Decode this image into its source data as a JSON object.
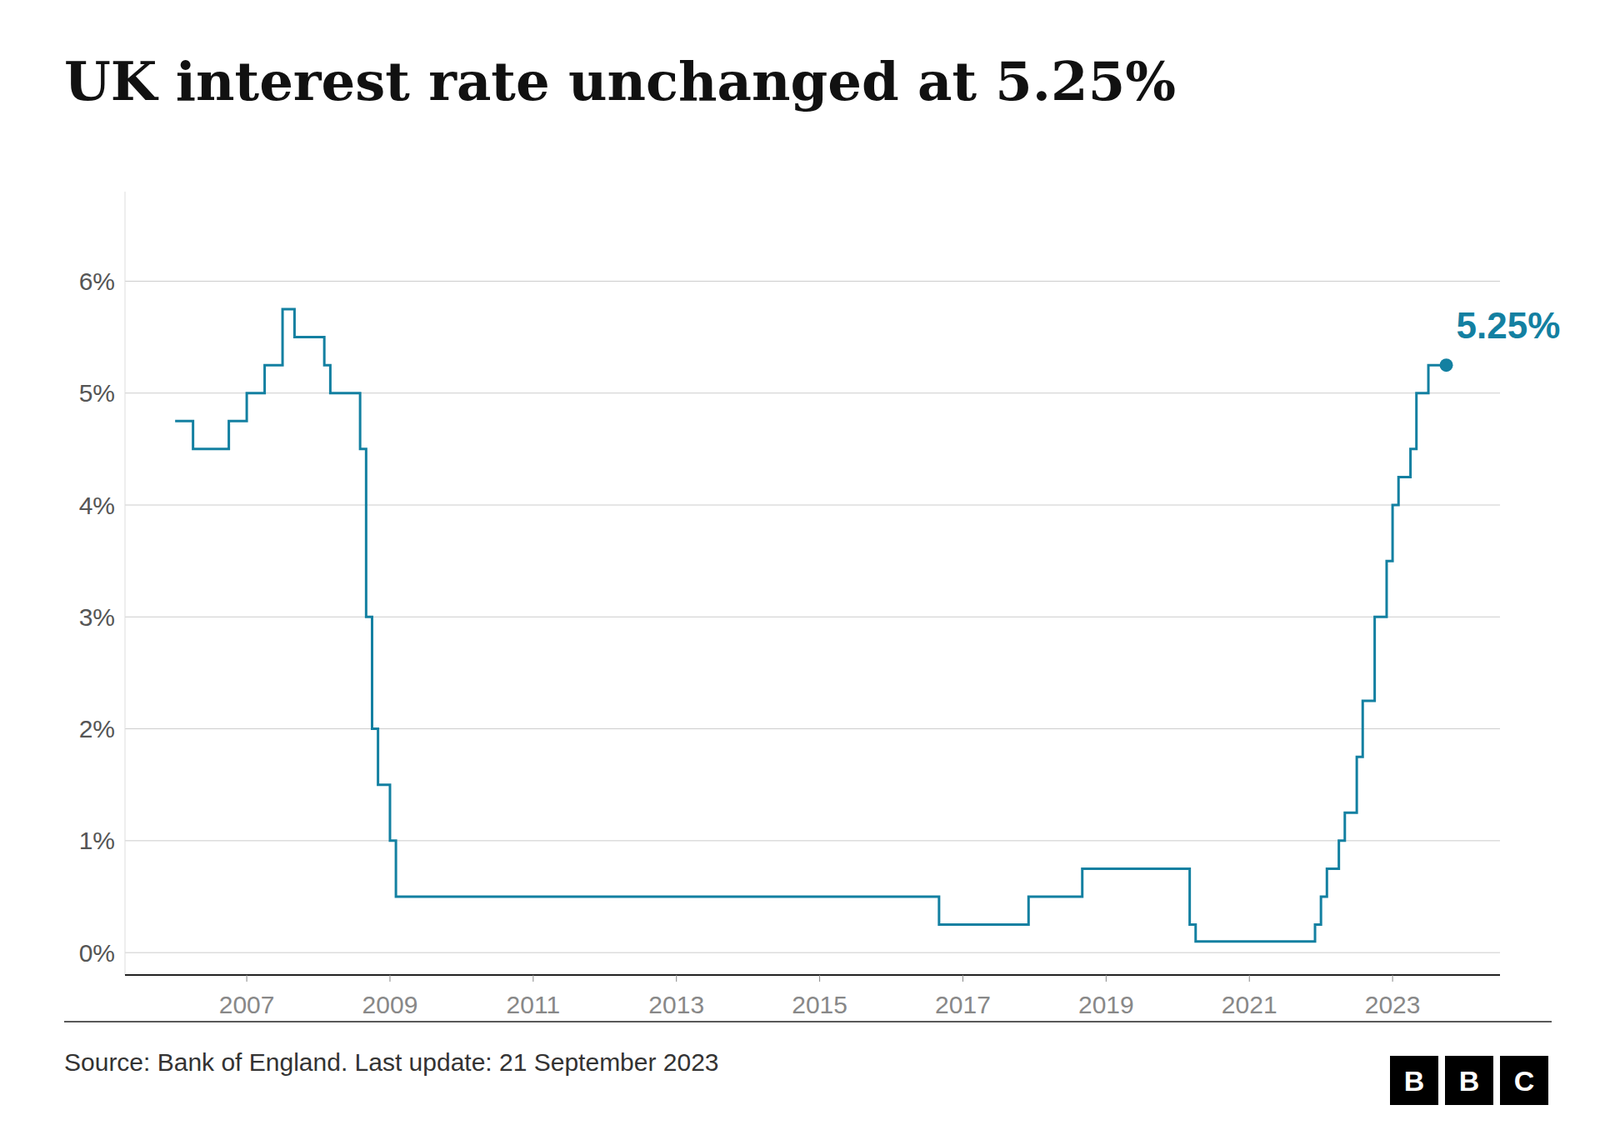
{
  "chart_data": {
    "type": "line",
    "line_style": "step",
    "title": "UK interest rate unchanged at 5.25%",
    "annotation": "5.25%",
    "source": "Source: Bank of England. Last update: 21 September 2023",
    "logo": "BBC",
    "color": "#1380A1",
    "grid": true,
    "x": [
      2006.0,
      2006.25,
      2006.583,
      2006.75,
      2007.0,
      2007.25,
      2007.5,
      2007.583,
      2007.667,
      2007.833,
      2007.917,
      2008.0,
      2008.083,
      2008.167,
      2008.333,
      2008.583,
      2008.667,
      2008.75,
      2008.833,
      2009.0,
      2009.083,
      2016.583,
      2016.667,
      2017.833,
      2017.917,
      2018.583,
      2018.667,
      2020.083,
      2020.167,
      2020.25,
      2021.917,
      2021.917,
      2022.0,
      2022.083,
      2022.25,
      2022.333,
      2022.5,
      2022.583,
      2022.75,
      2022.917,
      2023.0,
      2023.083,
      2023.25,
      2023.333,
      2023.5,
      2023.75
    ],
    "values": [
      4.75,
      4.5,
      4.5,
      4.75,
      5.0,
      5.25,
      5.75,
      5.75,
      5.5,
      5.5,
      5.5,
      5.5,
      5.25,
      5.0,
      5.0,
      4.5,
      3.0,
      2.0,
      1.5,
      1.0,
      0.5,
      0.5,
      0.25,
      0.25,
      0.5,
      0.5,
      0.75,
      0.75,
      0.25,
      0.1,
      0.1,
      0.25,
      0.5,
      0.75,
      1.0,
      1.25,
      1.75,
      2.25,
      3.0,
      3.5,
      4.0,
      4.25,
      4.5,
      5.0,
      5.25,
      5.25
    ],
    "xlim": [
      2005.3,
      2024.5
    ],
    "xticks": [
      2007,
      2009,
      2011,
      2013,
      2015,
      2017,
      2019,
      2021,
      2023
    ],
    "ylim": [
      -0.2,
      6.8
    ],
    "yticks": [
      {
        "value": 0,
        "label": "0%"
      },
      {
        "value": 1,
        "label": "1%"
      },
      {
        "value": 2,
        "label": "2%"
      },
      {
        "value": 3,
        "label": "3%"
      },
      {
        "value": 4,
        "label": "4%"
      },
      {
        "value": 5,
        "label": "5%"
      },
      {
        "value": 6,
        "label": "6%"
      }
    ]
  }
}
